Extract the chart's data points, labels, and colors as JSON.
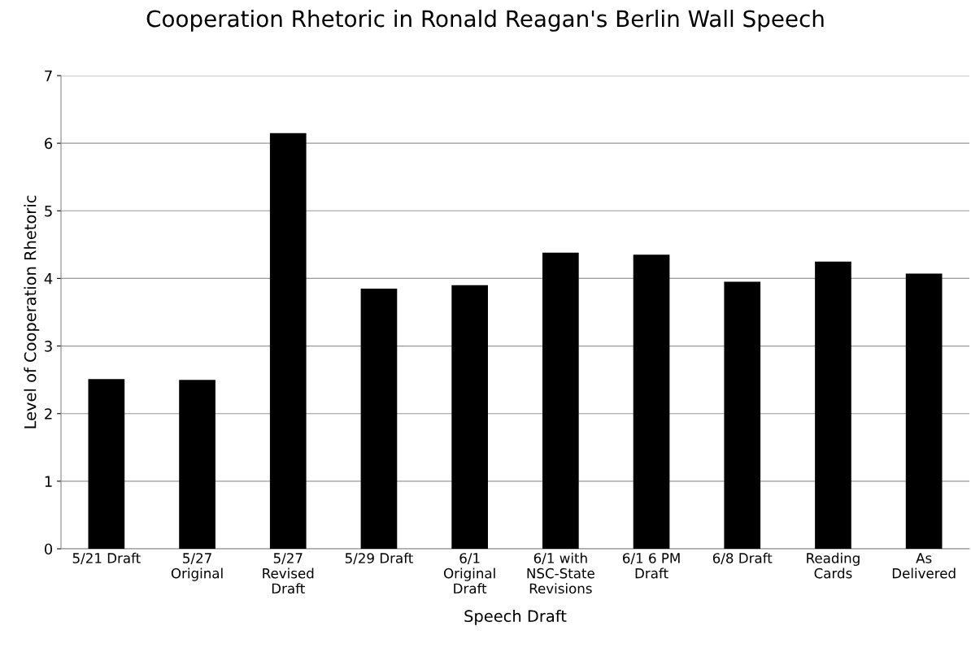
{
  "chart_data": {
    "type": "bar",
    "title": "Cooperation Rhetoric in Ronald Reagan's Berlin Wall Speech",
    "xlabel": "Speech Draft",
    "ylabel": "Level of Cooperation Rhetoric",
    "categories": [
      "5/21 Draft",
      "5/27\nOriginal",
      "5/27\nRevised\nDraft",
      "5/29 Draft",
      "6/1\nOriginal\nDraft",
      "6/1 with\nNSC-State\nRevisions",
      "6/1 6 PM\nDraft",
      "6/8 Draft",
      "Reading\nCards",
      "As\nDelivered"
    ],
    "values": [
      2.51,
      2.5,
      6.15,
      3.85,
      3.9,
      4.38,
      4.35,
      3.95,
      4.25,
      4.07
    ],
    "color": "#000000",
    "ylim": [
      0,
      7
    ],
    "yticks": [
      0,
      1,
      2,
      3,
      4,
      5,
      6,
      7
    ],
    "grid": "y",
    "legend": false
  }
}
